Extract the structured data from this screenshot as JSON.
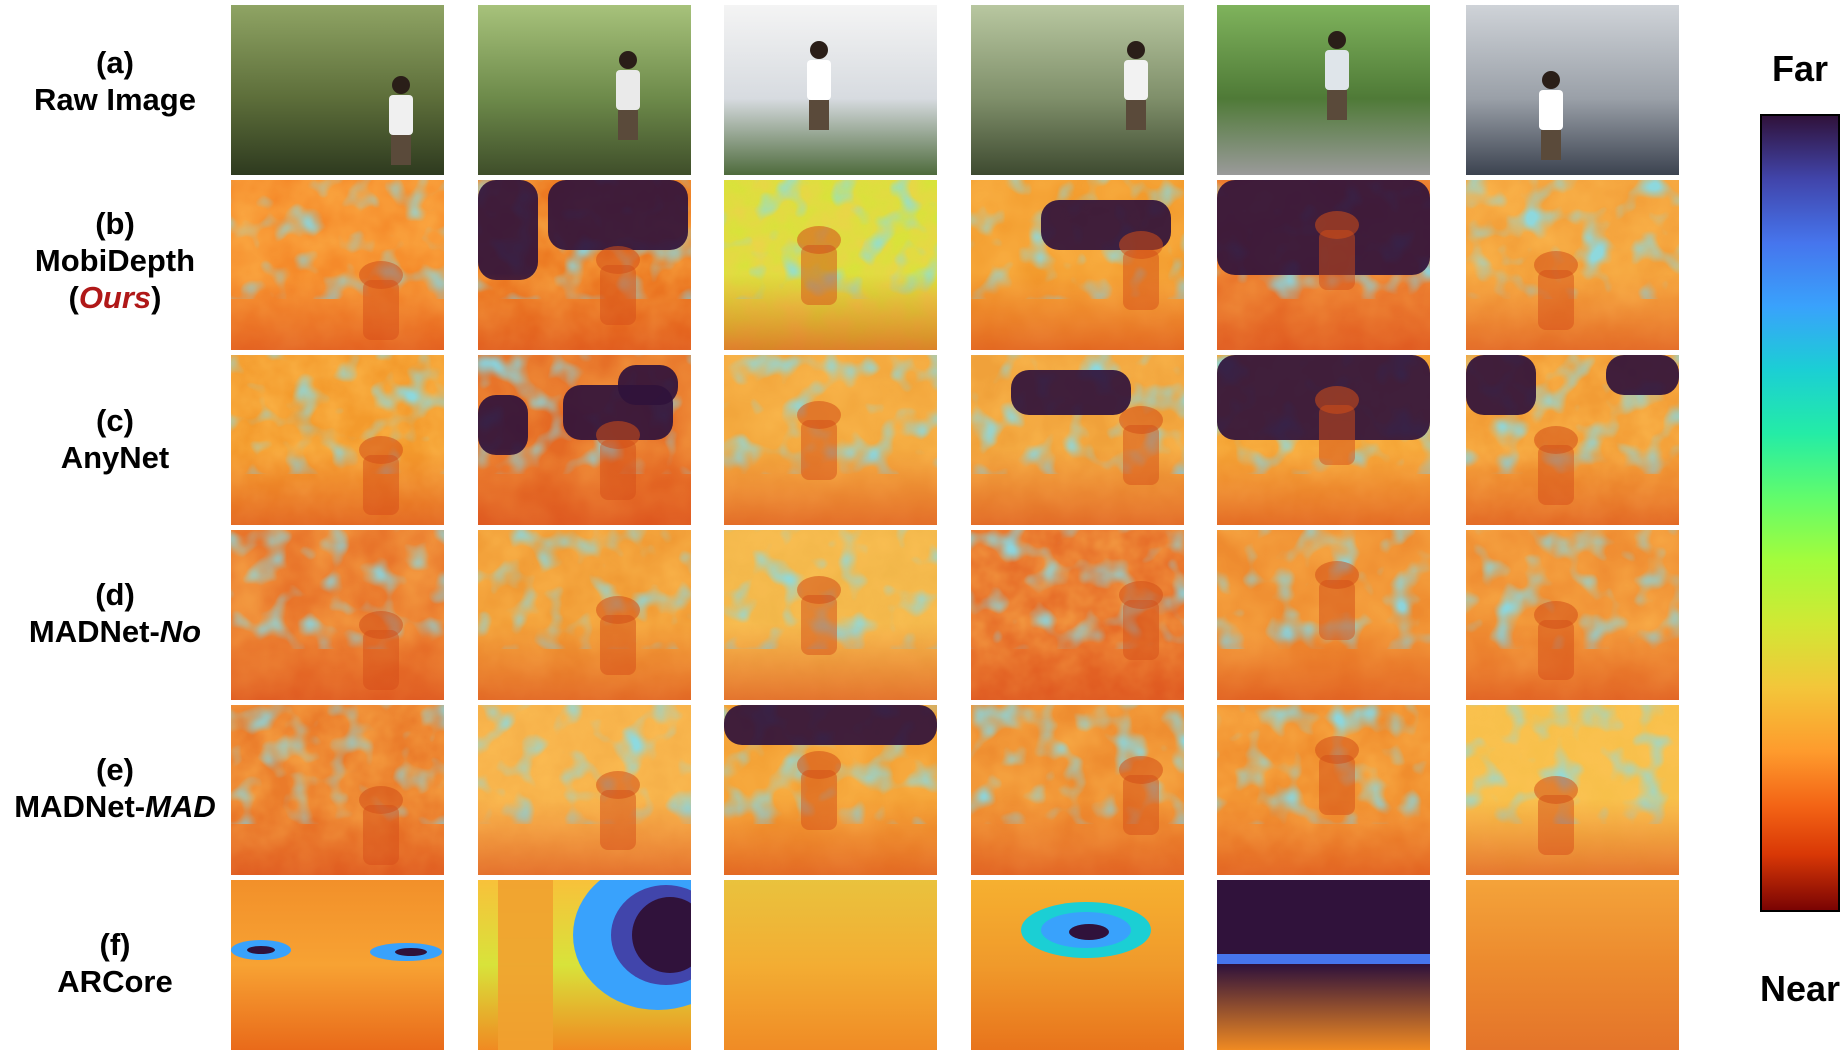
{
  "rows": [
    {
      "label_line1": "(a)",
      "label_line2": "Raw Image"
    },
    {
      "label_line1": "(b)",
      "label_line2": "MobiDepth",
      "label_paren_open": "(",
      "label_ours": "Ours",
      "label_paren_close": ")"
    },
    {
      "label_line1": "(c)",
      "label_line2": "AnyNet"
    },
    {
      "label_line1": "(d)",
      "label_line2a": "MADNet-",
      "label_line2b": "No"
    },
    {
      "label_line1": "(e)",
      "label_line2a": "MADNet-",
      "label_line2b": "MAD"
    },
    {
      "label_line1": "(f)",
      "label_line2": "ARCore"
    }
  ],
  "colorbar": {
    "far_label": "Far",
    "near_label": "Near",
    "colors": {
      "far": "#30123b",
      "near": "#7a0403",
      "mid": "#a4fc3b"
    }
  }
}
